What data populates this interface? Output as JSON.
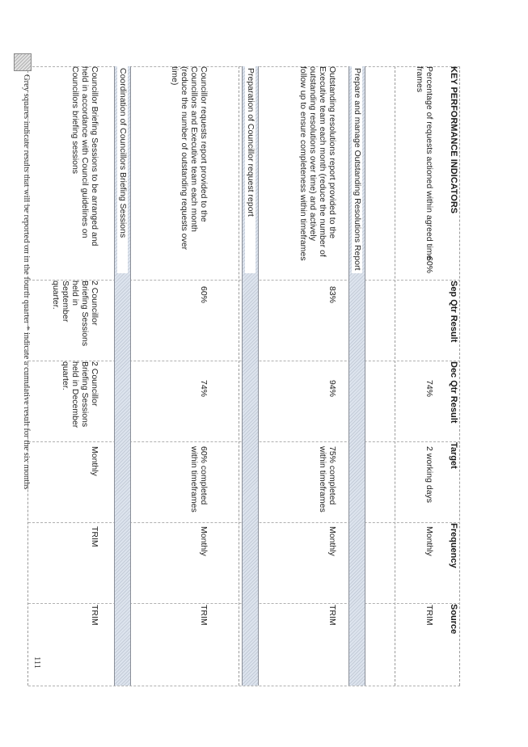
{
  "table": {
    "headers": {
      "kpi": "KEY PERFORMANCE INDICATORS",
      "sep": "Sep Qtr Result",
      "dec": "Dec Qtr Result",
      "target": "Target",
      "frequency": "Frequency",
      "source": "Source"
    },
    "row1": {
      "kpi": "Percentage of requests actioned within agreed time\nframes",
      "sep": "60%",
      "dec": "74%",
      "target": "2 working days",
      "frequency": "Monthly",
      "source": "TRIM"
    },
    "section1": "Prepare and manage Outstanding Resolutions Report",
    "row2": {
      "kpi": "Outstanding resolutions report provided to the\nExecutive team each month (reduce the number of\noutstanding resolutions over time) and actively\nfollow up to ensure completeness within timeframes",
      "sep": "83%",
      "dec": "94%",
      "target": "75% completed\nwithin timeframes",
      "frequency": "Monthly",
      "source": "TRIM"
    },
    "section2": "Preparation of Councillor request report",
    "row3": {
      "kpi": "Councillor requests report provided to the\nCouncillors and Executive team each month\n(reduce the number of outstanding requests over\ntime)",
      "sep": "60%",
      "dec": "74%",
      "target": "60% completed\nwithin timeframes",
      "frequency": "Monthly",
      "source": "TRIM"
    },
    "section3": "Coordination of Councillors Briefing Sessions",
    "row4": {
      "kpi": "Councillor Briefing Sessions to be arranged and\nheld in accordance with Council guidelines on\nCouncillors briefing sessions",
      "sep": "2 Councillor\nBriefing Sessions\nheld in\nSeptember\nquarter.",
      "dec": "2 Councillor\nBriefing Sessions\nheld in December\nquarter.",
      "target": "Monthly",
      "frequency": "TRIM",
      "source": "TRIM"
    }
  },
  "footer": {
    "note": "Grey squares indicate results that will be reported on in the fourth quarter      * indicate a cumulative result for the six months",
    "page_number": "111"
  }
}
